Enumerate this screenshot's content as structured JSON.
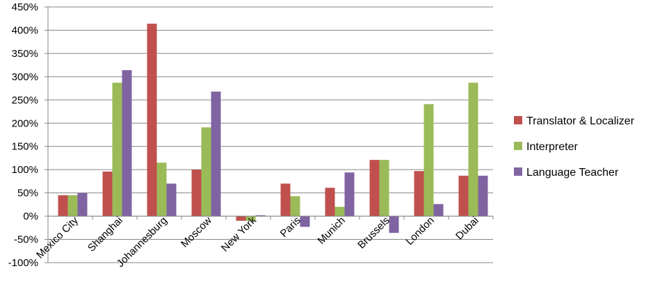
{
  "chart_data": {
    "type": "bar",
    "categories": [
      "Mexico City",
      "Shanghai",
      "Johannesburg",
      "Moscow",
      "New York",
      "Paris",
      "Munich",
      "Brussels",
      "London",
      "Dubai"
    ],
    "series": [
      {
        "name": "Translator & Localizer",
        "color": "#C0504D",
        "values": [
          45,
          96,
          414,
          100,
          -10,
          70,
          61,
          121,
          97,
          87
        ]
      },
      {
        "name": "Interpreter",
        "color": "#9BBB59",
        "values": [
          45,
          287,
          115,
          191,
          -10,
          43,
          20,
          121,
          241,
          287
        ]
      },
      {
        "name": "Language Teacher",
        "color": "#8064A2",
        "values": [
          50,
          314,
          70,
          268,
          2,
          -23,
          94,
          -36,
          26,
          87
        ]
      }
    ],
    "y_ticks": [
      "-100%",
      "-50%",
      "0%",
      "50%",
      "100%",
      "150%",
      "200%",
      "250%",
      "300%",
      "350%",
      "400%",
      "450%"
    ],
    "ylim": [
      -100,
      450
    ],
    "grid": true,
    "legend_position": "right"
  }
}
